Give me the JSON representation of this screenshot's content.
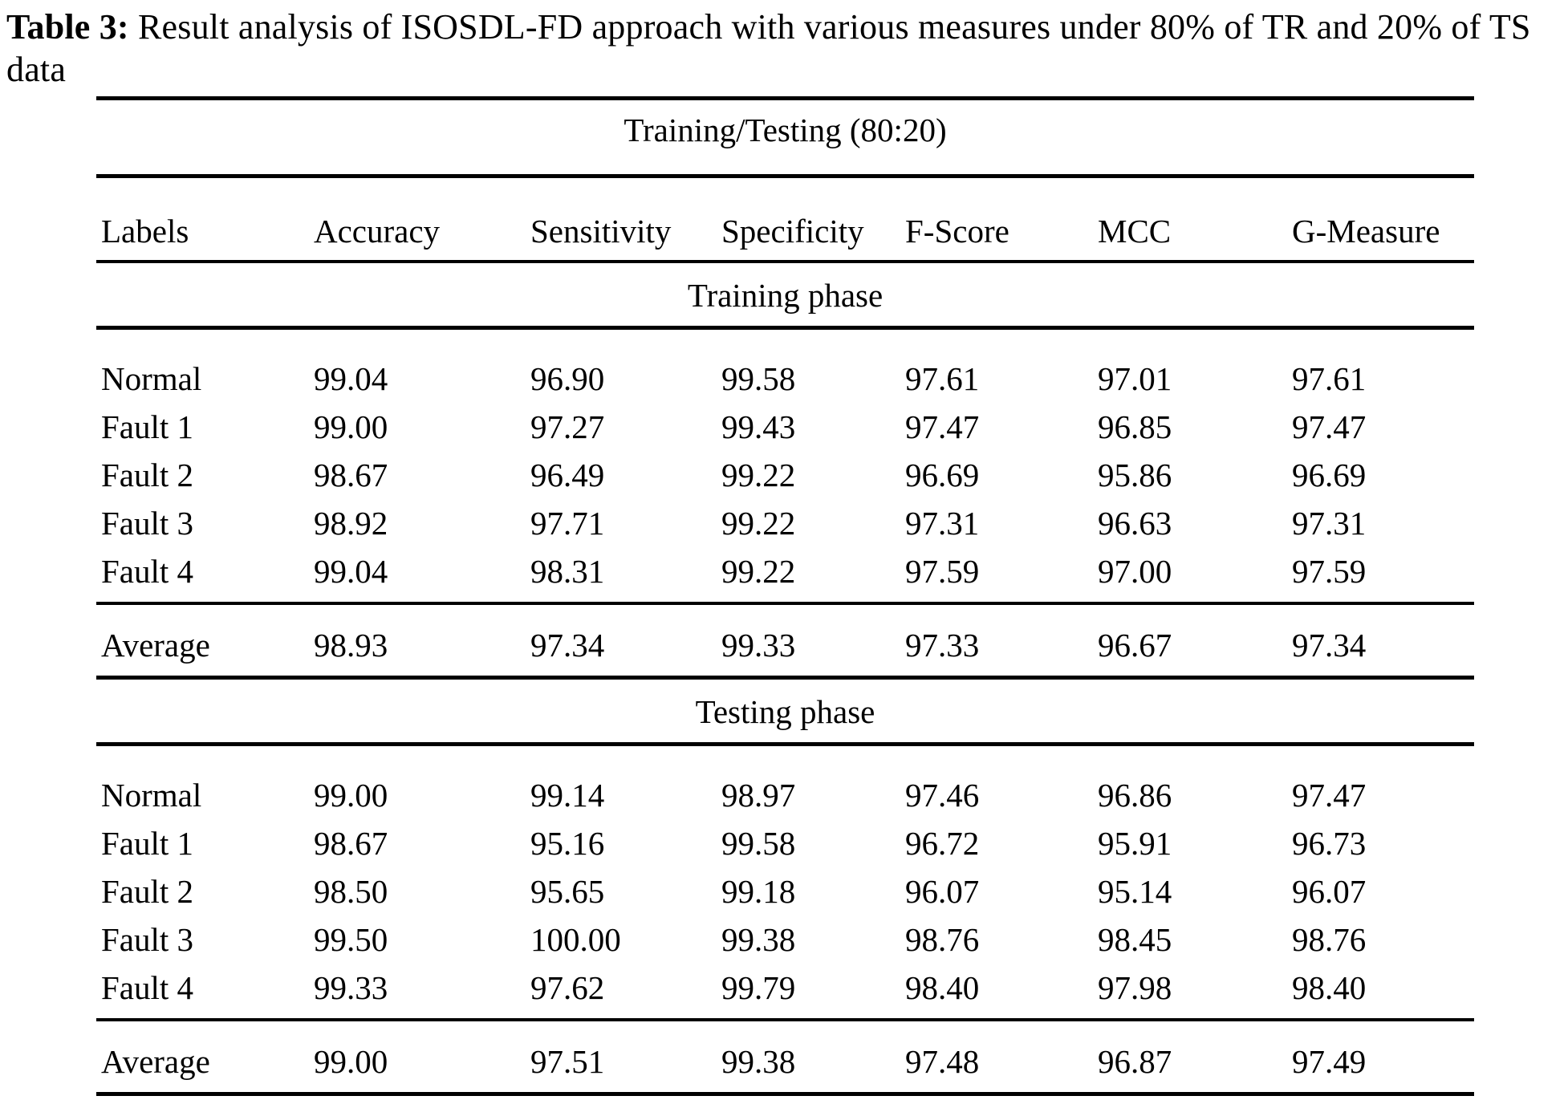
{
  "caption": {
    "label": "Table 3:",
    "text": "Result analysis of ISOSDL-FD approach with various measures under 80% of TR and 20% of TS data"
  },
  "table": {
    "span_header": "Training/Testing (80:20)",
    "columns": [
      "Labels",
      "Accuracy",
      "Sensitivity",
      "Specificity",
      "F-Score",
      "MCC",
      "G-Measure"
    ],
    "sections": [
      {
        "name": "Training phase",
        "rows": [
          {
            "label": "Normal",
            "values": [
              "99.04",
              "96.90",
              "99.58",
              "97.61",
              "97.01",
              "97.61"
            ]
          },
          {
            "label": "Fault 1",
            "values": [
              "99.00",
              "97.27",
              "99.43",
              "97.47",
              "96.85",
              "97.47"
            ]
          },
          {
            "label": "Fault 2",
            "values": [
              "98.67",
              "96.49",
              "99.22",
              "96.69",
              "95.86",
              "96.69"
            ]
          },
          {
            "label": "Fault 3",
            "values": [
              "98.92",
              "97.71",
              "99.22",
              "97.31",
              "96.63",
              "97.31"
            ]
          },
          {
            "label": "Fault 4",
            "values": [
              "99.04",
              "98.31",
              "99.22",
              "97.59",
              "97.00",
              "97.59"
            ]
          }
        ],
        "average": {
          "label": "Average",
          "values": [
            "98.93",
            "97.34",
            "99.33",
            "97.33",
            "96.67",
            "97.34"
          ]
        }
      },
      {
        "name": "Testing phase",
        "rows": [
          {
            "label": "Normal",
            "values": [
              "99.00",
              "99.14",
              "98.97",
              "97.46",
              "96.86",
              "97.47"
            ]
          },
          {
            "label": "Fault 1",
            "values": [
              "98.67",
              "95.16",
              "99.58",
              "96.72",
              "95.91",
              "96.73"
            ]
          },
          {
            "label": "Fault 2",
            "values": [
              "98.50",
              "95.65",
              "99.18",
              "96.07",
              "95.14",
              "96.07"
            ]
          },
          {
            "label": "Fault 3",
            "values": [
              "99.50",
              "100.00",
              "99.38",
              "98.76",
              "98.45",
              "98.76"
            ]
          },
          {
            "label": "Fault 4",
            "values": [
              "99.33",
              "97.62",
              "99.79",
              "98.40",
              "97.98",
              "98.40"
            ]
          }
        ],
        "average": {
          "label": "Average",
          "values": [
            "99.00",
            "97.51",
            "99.38",
            "97.48",
            "96.87",
            "97.49"
          ]
        }
      }
    ]
  },
  "colors": {
    "text": "#000000",
    "background": "#ffffff",
    "rule": "#000000"
  }
}
